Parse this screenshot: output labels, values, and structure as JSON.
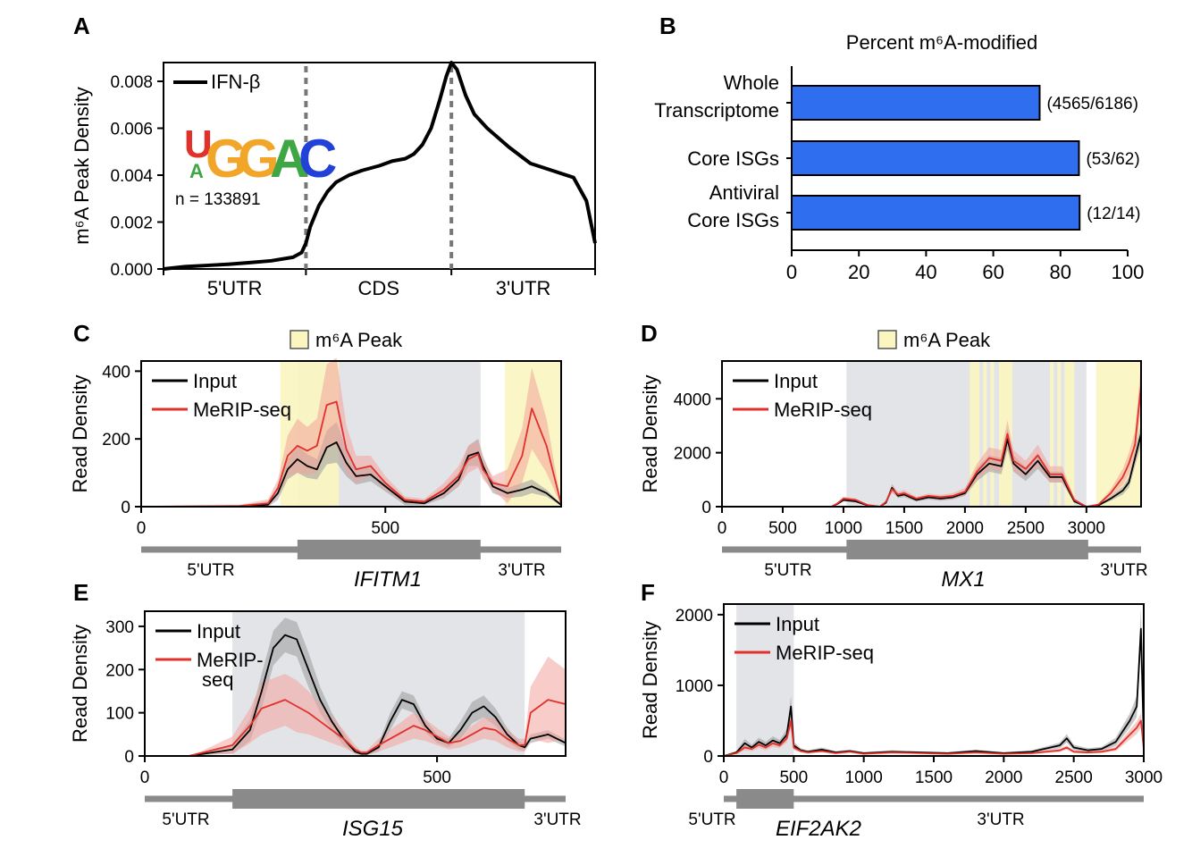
{
  "panels": {
    "A": "A",
    "B": "B",
    "C": "C",
    "D": "D",
    "E": "E",
    "F": "F"
  },
  "peak_legend_label": "m⁶A Peak",
  "series_names": {
    "input": "Input",
    "merip": "MeRIP-seq",
    "merip_wrapped": [
      "MeRIP-",
      "seq"
    ]
  },
  "colors": {
    "input": "#000000",
    "merip": "#e0312b",
    "merip_band": "#f2a39b",
    "input_band": "#9a9a9a",
    "peak": "#fbf5c0",
    "gray_region": "#e3e4e8",
    "bar": "#2f6fef",
    "gene_model": "#8a8a8a"
  },
  "chart_data": [
    {
      "panel": "A",
      "type": "line",
      "title": "",
      "xlabel": "",
      "ylabel": "m⁶A Peak Density",
      "ylim": [
        0,
        0.0088
      ],
      "y_ticks": [
        "0.000",
        "0.002",
        "0.004",
        "0.006",
        "0.008"
      ],
      "y_tick_values": [
        0,
        0.002,
        0.004,
        0.006,
        0.008
      ],
      "region_labels": [
        "5'UTR",
        "CDS",
        "3'UTR"
      ],
      "region_bounds": [
        0.33,
        0.667
      ],
      "legend": "IFN-β",
      "motif": [
        "U",
        "G",
        "G",
        "A",
        "C"
      ],
      "motif_sub": "A",
      "n_label": "n = 133891",
      "series": [
        {
          "name": "IFN-β",
          "x": [
            0,
            0.05,
            0.1,
            0.15,
            0.2,
            0.25,
            0.3,
            0.32,
            0.33,
            0.34,
            0.36,
            0.38,
            0.4,
            0.43,
            0.46,
            0.5,
            0.53,
            0.56,
            0.58,
            0.6,
            0.62,
            0.64,
            0.655,
            0.667,
            0.68,
            0.7,
            0.72,
            0.75,
            0.8,
            0.85,
            0.9,
            0.95,
            0.98,
            1.0
          ],
          "y": [
            0,
            0.0001,
            0.00015,
            0.0002,
            0.00027,
            0.00035,
            0.0005,
            0.0007,
            0.0011,
            0.0018,
            0.0027,
            0.0033,
            0.0037,
            0.004,
            0.0042,
            0.0044,
            0.0046,
            0.0047,
            0.0049,
            0.0053,
            0.006,
            0.0072,
            0.0082,
            0.0088,
            0.0085,
            0.0074,
            0.0066,
            0.006,
            0.0052,
            0.0045,
            0.0042,
            0.0039,
            0.0029,
            0.0011
          ]
        }
      ]
    },
    {
      "panel": "B",
      "type": "bar",
      "title": "Percent m⁶A-modified",
      "categories": [
        [
          "Whole",
          "Transcriptome"
        ],
        [
          "Core ISGs"
        ],
        [
          "Antiviral",
          "Core ISGs"
        ]
      ],
      "values": [
        73.8,
        85.5,
        85.7
      ],
      "value_labels": [
        "(4565/6186)",
        "(53/62)",
        "(12/14)"
      ],
      "xlim": [
        0,
        100
      ],
      "x_ticks": [
        0,
        20,
        40,
        60,
        80,
        100
      ]
    },
    {
      "panel": "C",
      "type": "line",
      "gene": "IFITM1",
      "ylabel": "Read Density",
      "ylim": [
        0,
        430
      ],
      "y_ticks": [
        0,
        200,
        400
      ],
      "xlim": [
        0,
        860
      ],
      "x_ticks": [
        0,
        500
      ],
      "utr_labels": [
        "5'UTR",
        "3'UTR"
      ],
      "cds": [
        320,
        695
      ],
      "gray_regions": [
        [
          320,
          695
        ]
      ],
      "peak_regions": [
        [
          285,
          405
        ],
        [
          745,
          860
        ]
      ],
      "input": {
        "x": [
          0,
          200,
          260,
          280,
          300,
          320,
          340,
          360,
          380,
          400,
          420,
          440,
          470,
          500,
          540,
          580,
          620,
          650,
          670,
          690,
          700,
          720,
          750,
          780,
          800,
          830,
          860
        ],
        "y": [
          0,
          1,
          6,
          40,
          110,
          140,
          120,
          110,
          175,
          190,
          130,
          90,
          95,
          60,
          15,
          10,
          40,
          80,
          150,
          160,
          120,
          60,
          40,
          50,
          60,
          40,
          5
        ],
        "band": [
          0,
          2,
          10,
          20,
          30,
          40,
          35,
          30,
          50,
          60,
          40,
          25,
          20,
          15,
          10,
          5,
          15,
          20,
          30,
          40,
          30,
          20,
          15,
          20,
          20,
          10,
          3
        ]
      },
      "merip": {
        "x": [
          0,
          200,
          260,
          280,
          300,
          320,
          340,
          360,
          380,
          400,
          420,
          440,
          470,
          500,
          540,
          580,
          620,
          650,
          670,
          690,
          700,
          720,
          750,
          780,
          800,
          830,
          860
        ],
        "y": [
          0,
          2,
          10,
          55,
          150,
          180,
          165,
          180,
          300,
          310,
          170,
          110,
          120,
          70,
          20,
          15,
          50,
          90,
          140,
          155,
          110,
          70,
          60,
          150,
          290,
          180,
          8
        ],
        "band": [
          0,
          3,
          12,
          25,
          60,
          80,
          70,
          80,
          120,
          130,
          70,
          40,
          30,
          20,
          10,
          8,
          20,
          30,
          40,
          40,
          30,
          20,
          50,
          80,
          120,
          80,
          5
        ]
      }
    },
    {
      "panel": "D",
      "type": "line",
      "gene": "MX1",
      "ylabel": "Read Density",
      "ylim": [
        0,
        5400
      ],
      "y_ticks": [
        0,
        2000,
        4000
      ],
      "xlim": [
        0,
        3450
      ],
      "x_ticks": [
        0,
        500,
        1000,
        1500,
        2000,
        2500,
        3000
      ],
      "utr_labels": [
        "5'UTR",
        "3'UTR"
      ],
      "cds": [
        1025,
        3015
      ],
      "gray_regions": [
        [
          1025,
          3000
        ]
      ],
      "peak_regions": [
        [
          2040,
          2120
        ],
        [
          2150,
          2180
        ],
        [
          2210,
          2240
        ],
        [
          2280,
          2390
        ],
        [
          2700,
          2730
        ],
        [
          2760,
          2790
        ],
        [
          2820,
          2900
        ],
        [
          3080,
          3450
        ]
      ],
      "input": {
        "x": [
          0,
          900,
          950,
          1000,
          1100,
          1200,
          1300,
          1350,
          1400,
          1450,
          1500,
          1600,
          1700,
          1800,
          1900,
          2000,
          2100,
          2200,
          2300,
          2350,
          2400,
          2500,
          2600,
          2700,
          2800,
          2900,
          3000,
          3100,
          3200,
          3300,
          3350,
          3400,
          3450
        ],
        "y": [
          0,
          0,
          100,
          250,
          200,
          50,
          0,
          150,
          700,
          400,
          450,
          250,
          350,
          300,
          350,
          500,
          1200,
          1600,
          1500,
          2500,
          1600,
          1200,
          1700,
          1100,
          1100,
          200,
          0,
          50,
          300,
          600,
          900,
          1800,
          2700
        ],
        "band": [
          0,
          0,
          30,
          60,
          50,
          20,
          0,
          40,
          150,
          80,
          100,
          60,
          80,
          80,
          80,
          100,
          250,
          300,
          300,
          400,
          300,
          250,
          300,
          200,
          200,
          60,
          0,
          20,
          80,
          150,
          200,
          300,
          400
        ]
      },
      "merip": {
        "x": [
          0,
          900,
          950,
          1000,
          1100,
          1200,
          1300,
          1350,
          1400,
          1450,
          1500,
          1600,
          1700,
          1800,
          1900,
          2000,
          2100,
          2200,
          2300,
          2350,
          2400,
          2500,
          2600,
          2700,
          2800,
          2900,
          3000,
          3100,
          3200,
          3300,
          3350,
          3400,
          3450
        ],
        "y": [
          0,
          0,
          120,
          300,
          250,
          60,
          0,
          180,
          650,
          450,
          500,
          300,
          400,
          350,
          400,
          550,
          1300,
          1800,
          1700,
          2700,
          1700,
          1400,
          1900,
          1200,
          1200,
          250,
          0,
          80,
          500,
          1100,
          1600,
          2300,
          4500
        ],
        "band": [
          0,
          0,
          40,
          70,
          60,
          20,
          0,
          50,
          150,
          100,
          120,
          70,
          90,
          90,
          100,
          150,
          300,
          400,
          400,
          500,
          400,
          300,
          400,
          300,
          300,
          80,
          0,
          30,
          150,
          300,
          400,
          500,
          800
        ]
      }
    },
    {
      "panel": "E",
      "type": "line",
      "gene": "ISG15",
      "ylabel": "Read Density",
      "ylim": [
        0,
        335
      ],
      "y_ticks": [
        0,
        100,
        200,
        300
      ],
      "xlim": [
        0,
        720
      ],
      "x_ticks": [
        0,
        500
      ],
      "utr_labels": [
        "5'UTR",
        "3'UTR"
      ],
      "cds": [
        150,
        650
      ],
      "gray_regions": [
        [
          150,
          650
        ]
      ],
      "peak_regions": [],
      "input": {
        "x": [
          0,
          75,
          100,
          150,
          180,
          200,
          220,
          240,
          260,
          280,
          300,
          320,
          340,
          360,
          370,
          380,
          400,
          420,
          440,
          460,
          480,
          500,
          520,
          540,
          560,
          580,
          600,
          620,
          640,
          650,
          660,
          690,
          720
        ],
        "y": [
          0,
          0,
          5,
          15,
          60,
          150,
          250,
          280,
          270,
          200,
          130,
          80,
          40,
          10,
          5,
          5,
          20,
          80,
          130,
          120,
          70,
          40,
          30,
          60,
          100,
          115,
          90,
          50,
          25,
          20,
          40,
          50,
          30
        ],
        "band": [
          0,
          0,
          3,
          10,
          25,
          40,
          40,
          40,
          40,
          40,
          30,
          20,
          15,
          5,
          3,
          3,
          10,
          20,
          20,
          20,
          15,
          10,
          10,
          20,
          25,
          25,
          20,
          15,
          10,
          8,
          10,
          10,
          8
        ]
      },
      "merip": {
        "x": [
          0,
          75,
          100,
          150,
          180,
          200,
          220,
          240,
          260,
          280,
          300,
          320,
          340,
          360,
          370,
          380,
          400,
          420,
          440,
          460,
          480,
          500,
          520,
          540,
          560,
          580,
          600,
          620,
          640,
          650,
          660,
          690,
          720
        ],
        "y": [
          0,
          0,
          8,
          25,
          70,
          110,
          120,
          130,
          115,
          100,
          80,
          60,
          40,
          15,
          8,
          8,
          25,
          40,
          55,
          70,
          60,
          45,
          30,
          35,
          50,
          65,
          60,
          40,
          25,
          25,
          100,
          130,
          120
        ],
        "band": [
          0,
          0,
          5,
          20,
          40,
          60,
          60,
          60,
          60,
          50,
          40,
          30,
          20,
          10,
          5,
          5,
          15,
          20,
          25,
          30,
          25,
          20,
          15,
          15,
          20,
          25,
          25,
          20,
          15,
          15,
          60,
          100,
          80
        ]
      }
    },
    {
      "panel": "F",
      "type": "line",
      "gene": "EIF2AK2",
      "ylabel": "Read Density",
      "ylim": [
        0,
        2150
      ],
      "y_ticks": [
        0,
        1000,
        2000
      ],
      "xlim": [
        0,
        3000
      ],
      "x_ticks": [
        0,
        500,
        1000,
        1500,
        2000,
        2500,
        3000
      ],
      "utr_labels": [
        "5'UTR",
        "3'UTR"
      ],
      "cds": [
        90,
        500
      ],
      "gray_regions": [
        [
          90,
          500
        ]
      ],
      "peak_regions": [],
      "input": {
        "x": [
          0,
          90,
          150,
          200,
          250,
          300,
          350,
          400,
          450,
          480,
          500,
          550,
          600,
          700,
          800,
          900,
          1000,
          1200,
          1400,
          1600,
          1800,
          2000,
          2200,
          2400,
          2450,
          2500,
          2600,
          2700,
          2800,
          2850,
          2900,
          2950,
          2980,
          3000
        ],
        "y": [
          0,
          50,
          180,
          120,
          200,
          150,
          220,
          180,
          300,
          700,
          150,
          80,
          60,
          90,
          50,
          70,
          40,
          60,
          50,
          40,
          70,
          40,
          60,
          150,
          250,
          120,
          80,
          100,
          200,
          350,
          500,
          700,
          1800,
          200
        ],
        "band": [
          0,
          20,
          60,
          40,
          60,
          50,
          60,
          50,
          80,
          150,
          50,
          30,
          20,
          30,
          20,
          20,
          15,
          20,
          15,
          15,
          20,
          15,
          20,
          40,
          60,
          40,
          30,
          30,
          60,
          80,
          100,
          150,
          300,
          80
        ]
      },
      "merip": {
        "x": [
          0,
          90,
          150,
          200,
          250,
          300,
          350,
          400,
          450,
          480,
          500,
          550,
          600,
          700,
          800,
          900,
          1000,
          1200,
          1400,
          1600,
          1800,
          2000,
          2200,
          2400,
          2450,
          2500,
          2600,
          2700,
          2800,
          2850,
          2900,
          2950,
          2980,
          3000
        ],
        "y": [
          0,
          40,
          120,
          100,
          160,
          120,
          180,
          150,
          250,
          500,
          120,
          70,
          50,
          70,
          40,
          60,
          30,
          50,
          40,
          30,
          50,
          30,
          40,
          80,
          120,
          60,
          50,
          60,
          100,
          200,
          300,
          400,
          500,
          100
        ],
        "band": [
          0,
          15,
          40,
          30,
          50,
          40,
          50,
          40,
          60,
          100,
          40,
          20,
          15,
          20,
          15,
          15,
          10,
          15,
          10,
          10,
          15,
          10,
          15,
          25,
          30,
          20,
          15,
          20,
          30,
          50,
          70,
          90,
          100,
          40
        ]
      }
    }
  ]
}
